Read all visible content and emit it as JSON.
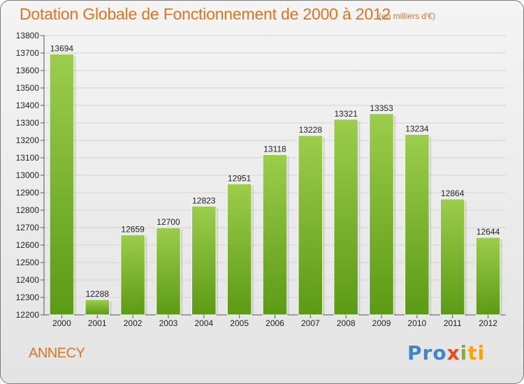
{
  "header": {
    "title": "Dotation Globale de Fonctionnement de 2000 à 2012",
    "unit": "(en milliers d'€)"
  },
  "footer": {
    "city": "ANNECY",
    "logo": [
      "Pro",
      "x",
      "i",
      "ti"
    ]
  },
  "colors": {
    "accent": "#e2731f",
    "bar_top": "#9ccd4c",
    "bar_bottom": "#5c9a16"
  },
  "chart_data": {
    "type": "bar",
    "title": "Dotation Globale de Fonctionnement de 2000 à 2012",
    "subtitle": "(en milliers d'€)",
    "xlabel": "",
    "ylabel": "",
    "categories": [
      "2000",
      "2001",
      "2002",
      "2003",
      "2004",
      "2005",
      "2006",
      "2007",
      "2008",
      "2009",
      "2010",
      "2011",
      "2012"
    ],
    "values": [
      13694,
      12288,
      12659,
      12700,
      12823,
      12951,
      13118,
      13228,
      13321,
      13353,
      13234,
      12864,
      12644
    ],
    "ylim": [
      12200,
      13800
    ],
    "yticks": [
      12200,
      12300,
      12400,
      12500,
      12600,
      12700,
      12800,
      12900,
      13000,
      13100,
      13200,
      13300,
      13400,
      13500,
      13600,
      13700,
      13800
    ],
    "grid": true,
    "data_labels": true
  }
}
